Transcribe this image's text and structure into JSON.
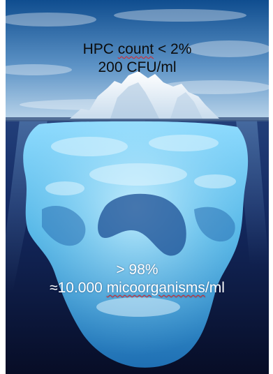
{
  "above_water": {
    "line1_prefix": "HPC ",
    "line1_flagged": "count",
    "line1_suffix": " < 2%",
    "line2": "200 CFU/ml"
  },
  "below_water": {
    "line1": "> 98%",
    "line2_prefix": "≈10.000 ",
    "line2_flagged": "micoorganisms",
    "line2_suffix": "/ml"
  },
  "colors": {
    "sky_top": "#0f4d8f",
    "sky_bottom": "#b9d4ea",
    "ice_tip": "#f4f9fd",
    "deep_water": "#080f29",
    "submerged_ice": "#5fc3ee",
    "spellcheck_underline": "#e02020"
  }
}
